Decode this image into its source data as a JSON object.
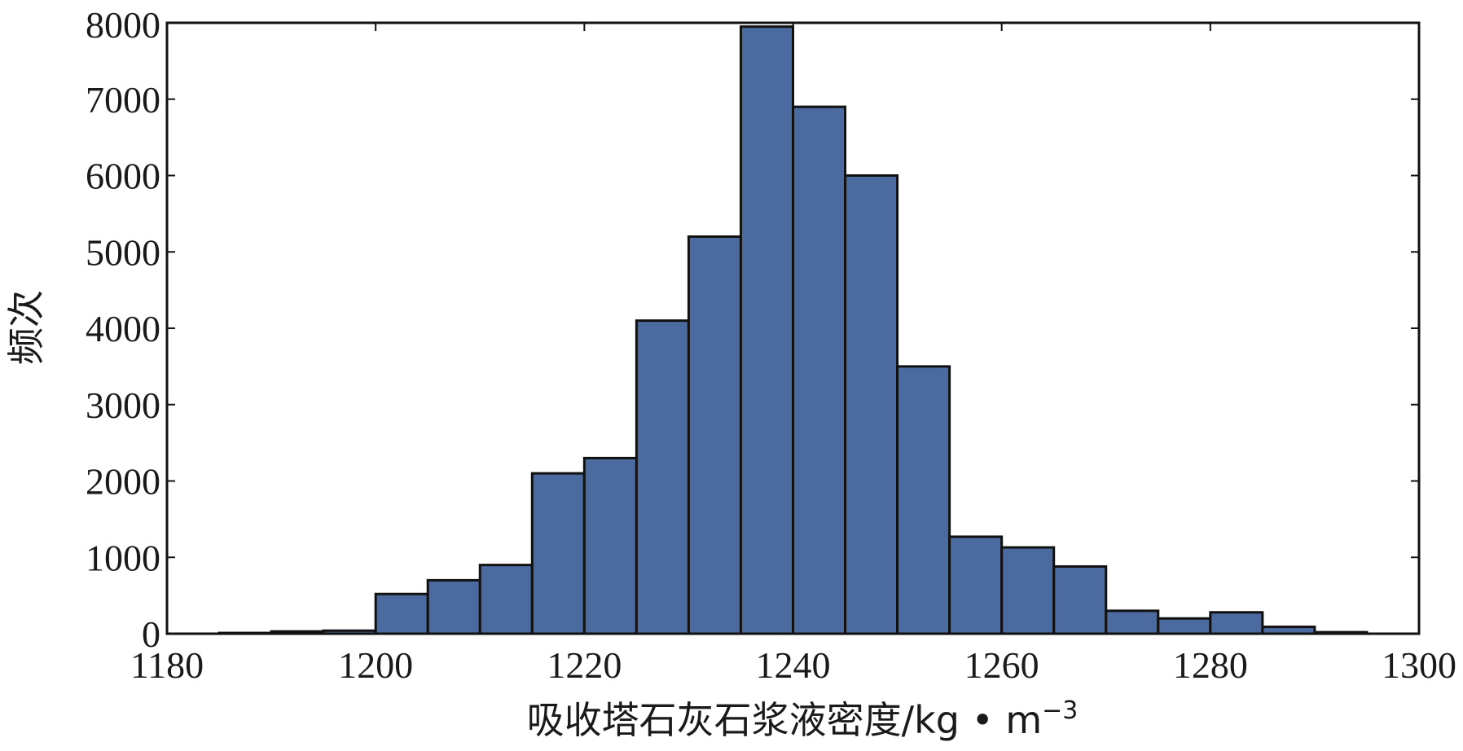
{
  "chart_data": {
    "type": "bar",
    "subtype": "histogram",
    "xlabel": "吸收塔石灰石浆液密度/kg • m",
    "xlabel_sup": "−3",
    "ylabel": "频次",
    "xlim": [
      1180,
      1300
    ],
    "ylim": [
      0,
      8000
    ],
    "x_ticks": [
      1180,
      1200,
      1220,
      1240,
      1260,
      1280,
      1300
    ],
    "y_ticks": [
      0,
      1000,
      2000,
      3000,
      4000,
      5000,
      6000,
      7000,
      8000
    ],
    "bin_width": 5,
    "bins": [
      {
        "x0": 1180,
        "x1": 1185,
        "value": 0
      },
      {
        "x0": 1185,
        "x1": 1190,
        "value": 10
      },
      {
        "x0": 1190,
        "x1": 1195,
        "value": 30
      },
      {
        "x0": 1195,
        "x1": 1200,
        "value": 40
      },
      {
        "x0": 1200,
        "x1": 1205,
        "value": 520
      },
      {
        "x0": 1205,
        "x1": 1210,
        "value": 700
      },
      {
        "x0": 1210,
        "x1": 1215,
        "value": 900
      },
      {
        "x0": 1215,
        "x1": 1220,
        "value": 2100
      },
      {
        "x0": 1220,
        "x1": 1225,
        "value": 2300
      },
      {
        "x0": 1225,
        "x1": 1230,
        "value": 4100
      },
      {
        "x0": 1230,
        "x1": 1235,
        "value": 5200
      },
      {
        "x0": 1235,
        "x1": 1240,
        "value": 7950
      },
      {
        "x0": 1240,
        "x1": 1245,
        "value": 6900
      },
      {
        "x0": 1245,
        "x1": 1250,
        "value": 6000
      },
      {
        "x0": 1250,
        "x1": 1255,
        "value": 3500
      },
      {
        "x0": 1255,
        "x1": 1260,
        "value": 1270
      },
      {
        "x0": 1260,
        "x1": 1265,
        "value": 1130
      },
      {
        "x0": 1265,
        "x1": 1270,
        "value": 880
      },
      {
        "x0": 1270,
        "x1": 1275,
        "value": 300
      },
      {
        "x0": 1275,
        "x1": 1280,
        "value": 200
      },
      {
        "x0": 1280,
        "x1": 1285,
        "value": 280
      },
      {
        "x0": 1285,
        "x1": 1290,
        "value": 90
      },
      {
        "x0": 1290,
        "x1": 1295,
        "value": 20
      },
      {
        "x0": 1295,
        "x1": 1300,
        "value": 0
      }
    ],
    "bar_color": "#4a6aa0",
    "bar_edge_color": "#111111",
    "grid": false,
    "legend": "none"
  }
}
